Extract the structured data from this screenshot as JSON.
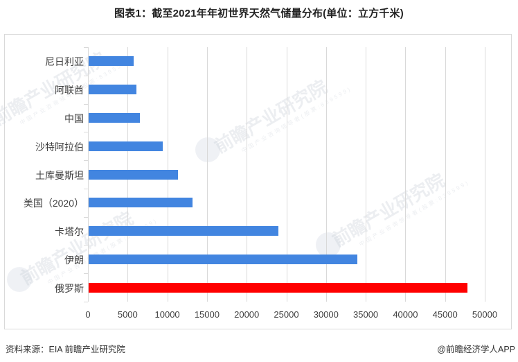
{
  "title": "图表1：截至2021年年初世界天然气储量分布(单位：立方千米)",
  "chart_data": {
    "type": "bar",
    "orientation": "horizontal",
    "title": "图表1：截至2021年年初世界天然气储量分布(单位：立方千米)",
    "xlabel": "",
    "ylabel": "",
    "categories": [
      "尼日利亚",
      "阿联酋",
      "中国",
      "沙特阿拉伯",
      "土库曼斯坦",
      "美国（2020）",
      "卡塔尔",
      "伊朗",
      "俄罗斯"
    ],
    "values": [
      5700,
      6000,
      6500,
      9300,
      11300,
      13100,
      23900,
      33900,
      47700
    ],
    "colors": [
      "#4285E0",
      "#4285E0",
      "#4285E0",
      "#4285E0",
      "#4285E0",
      "#4285E0",
      "#4285E0",
      "#4285E0",
      "#FF0000"
    ],
    "xlim": [
      0,
      50000
    ],
    "xticks": [
      "0",
      "5000",
      "10000",
      "15000",
      "20000",
      "25000",
      "30000",
      "35000",
      "40000",
      "45000",
      "50000"
    ],
    "grid": true,
    "legend": null,
    "highlight": "俄罗斯"
  },
  "colors": {
    "bar_default": "#4285E0",
    "bar_highlight": "#FF0000",
    "grid": "#D9D9D9"
  },
  "watermark": {
    "text": "前瞻产业研究院",
    "subtext": "中国产业咨询领导者(股票:839599)"
  },
  "footer": {
    "source": "资料来源：EIA 前瞻产业研究院",
    "credit": "@前瞻经济学人APP"
  }
}
